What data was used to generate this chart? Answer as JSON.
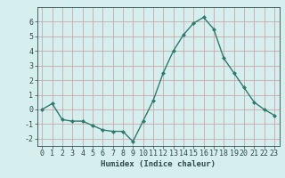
{
  "x": [
    0,
    1,
    2,
    3,
    4,
    5,
    6,
    7,
    8,
    9,
    10,
    11,
    12,
    13,
    14,
    15,
    16,
    17,
    18,
    19,
    20,
    21,
    22,
    23
  ],
  "y": [
    0.0,
    0.4,
    -0.7,
    -0.8,
    -0.8,
    -1.1,
    -1.4,
    -1.5,
    -1.5,
    -2.2,
    -0.8,
    0.6,
    2.5,
    4.0,
    5.1,
    5.9,
    6.3,
    5.5,
    3.5,
    2.5,
    1.5,
    0.5,
    0.0,
    -0.4
  ],
  "line_color": "#2e7b6e",
  "marker": "D",
  "marker_size": 2.0,
  "bg_color": "#d6eeee",
  "grid_color": "#c0d8d8",
  "xlabel": "Humidex (Indice chaleur)",
  "ylim": [
    -2.5,
    7.0
  ],
  "xlim": [
    -0.5,
    23.5
  ],
  "yticks": [
    -2,
    -1,
    0,
    1,
    2,
    3,
    4,
    5,
    6
  ],
  "xticks": [
    0,
    1,
    2,
    3,
    4,
    5,
    6,
    7,
    8,
    9,
    10,
    11,
    12,
    13,
    14,
    15,
    16,
    17,
    18,
    19,
    20,
    21,
    22,
    23
  ],
  "tick_color": "#2d4a4a",
  "label_fontsize": 6.5,
  "tick_fontsize": 6.0,
  "linewidth": 1.0
}
